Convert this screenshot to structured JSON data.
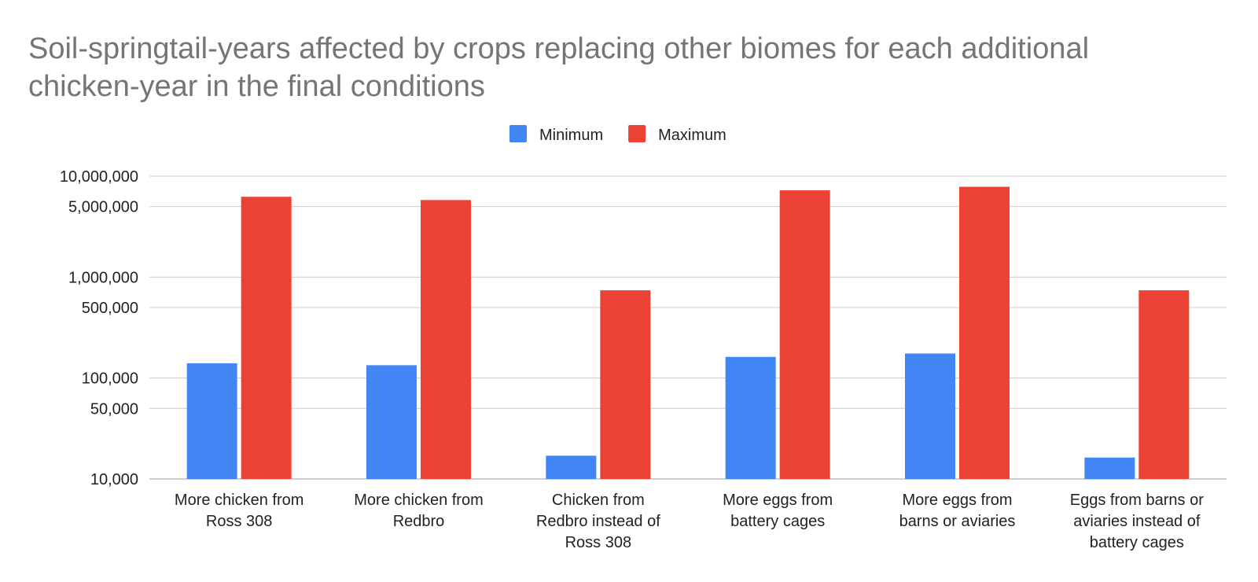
{
  "chart_data": {
    "type": "bar",
    "title": "Soil-springtail-years affected by crops replacing other biomes for each additional chicken-year in the final conditions",
    "xlabel": "",
    "ylabel": "",
    "y_scale": "log",
    "ylim": [
      10000,
      10000000
    ],
    "yticks": [
      10000,
      50000,
      100000,
      500000,
      1000000,
      5000000,
      10000000
    ],
    "ytick_labels": [
      "10,000",
      "50,000",
      "100,000",
      "500,000",
      "1,000,000",
      "5,000,000",
      "10,000,000"
    ],
    "grid": true,
    "legend_position": "top-center",
    "categories": [
      [
        "More chicken from",
        "Ross 308"
      ],
      [
        "More chicken from",
        "Redbro"
      ],
      [
        "Chicken from",
        "Redbro instead of",
        "Ross 308"
      ],
      [
        "More eggs from",
        "battery cages"
      ],
      [
        "More eggs from",
        "barns or aviaries"
      ],
      [
        "Eggs from barns or",
        "aviaries instead of",
        "battery cages"
      ]
    ],
    "series": [
      {
        "name": "Minimum",
        "color": "#4285f4",
        "values": [
          140000,
          134000,
          17000,
          162000,
          175000,
          16300
        ]
      },
      {
        "name": "Maximum",
        "color": "#ea4335",
        "values": [
          6250000,
          5800000,
          740000,
          7250000,
          7850000,
          740000
        ]
      }
    ],
    "axis_color": "#bdbdbd",
    "grid_color": "#cccccc",
    "text_color": "#222222"
  }
}
